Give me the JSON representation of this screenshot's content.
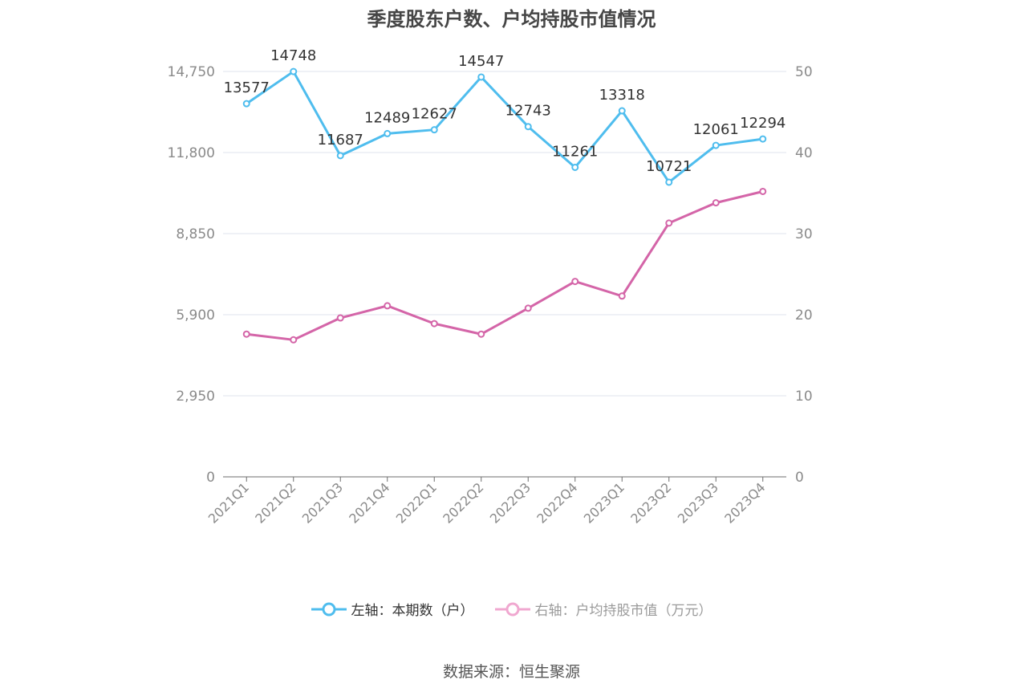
{
  "chart_data": {
    "type": "line",
    "title": "季度股东户数、户均持股市值情况",
    "categories": [
      "2021Q1",
      "2021Q2",
      "2021Q3",
      "2021Q4",
      "2022Q1",
      "2022Q2",
      "2022Q3",
      "2022Q4",
      "2023Q1",
      "2023Q2",
      "2023Q3",
      "2023Q4"
    ],
    "left_axis": {
      "ticks": [
        "0",
        "2,950",
        "5,900",
        "8,850",
        "11,800",
        "14,750"
      ],
      "ylim": [
        0,
        14750
      ]
    },
    "right_axis": {
      "ticks": [
        "0",
        "10",
        "20",
        "30",
        "40",
        "50"
      ],
      "ylim": [
        0,
        50
      ]
    },
    "series": [
      {
        "name": "左轴：本期数（户）",
        "axis": "left",
        "color": "#4fbdee",
        "values": [
          13577,
          14748,
          11687,
          12489,
          12627,
          14547,
          12743,
          11261,
          13318,
          10721,
          12061,
          12294
        ],
        "labels": [
          "13577",
          "14748",
          "11687",
          "12489",
          "12627",
          "14547",
          "12743",
          "11261",
          "13318",
          "10721",
          "12061",
          "12294"
        ]
      },
      {
        "name": "右轴：户均持股市值（万元）",
        "axis": "right",
        "color": "#d465a8",
        "values": [
          17.6,
          16.9,
          19.6,
          21.1,
          18.9,
          17.6,
          20.8,
          24.1,
          22.3,
          31.3,
          33.8,
          35.2
        ]
      }
    ],
    "grid": true,
    "legend_position": "bottom"
  },
  "legend": {
    "left_label": "左轴：本期数（户）",
    "right_label": "右轴：户均持股市值（万元）"
  },
  "source": "数据来源：恒生聚源"
}
